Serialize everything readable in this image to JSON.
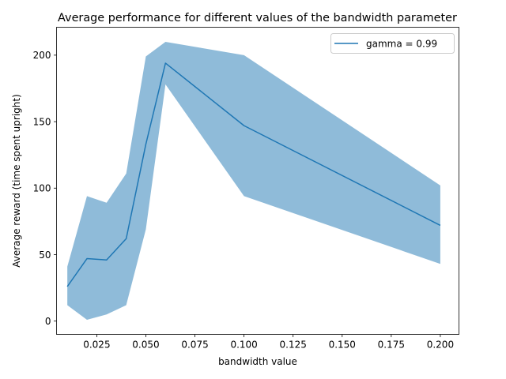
{
  "chart_data": {
    "type": "line",
    "title": "Average performance for different values of the bandwidth parameter",
    "xlabel": "bandwidth value",
    "ylabel": "Average reward (time spent upright)",
    "xlim": [
      0.0045,
      0.2095
    ],
    "ylim": [
      -10,
      221
    ],
    "xticks": [
      0.025,
      0.05,
      0.075,
      0.1,
      0.125,
      0.15,
      0.175,
      0.2
    ],
    "xtick_labels": [
      "0.025",
      "0.050",
      "0.075",
      "0.100",
      "0.125",
      "0.150",
      "0.175",
      "0.200"
    ],
    "yticks": [
      0,
      50,
      100,
      150,
      200
    ],
    "ytick_labels": [
      "0",
      "50",
      "100",
      "150",
      "200"
    ],
    "grid": false,
    "legend_position": "upper right",
    "series": [
      {
        "name": "gamma = 0.99",
        "color": "#1f77b4",
        "band_color": "#1f77b4",
        "x": [
          0.01,
          0.02,
          0.03,
          0.04,
          0.05,
          0.06,
          0.1,
          0.2
        ],
        "values": [
          26,
          47,
          46,
          62,
          133,
          194,
          147,
          72
        ],
        "upper": [
          41,
          94,
          89,
          111,
          199,
          210,
          200,
          102
        ],
        "lower": [
          12,
          1,
          5,
          12,
          69,
          178,
          94,
          43
        ]
      }
    ]
  }
}
